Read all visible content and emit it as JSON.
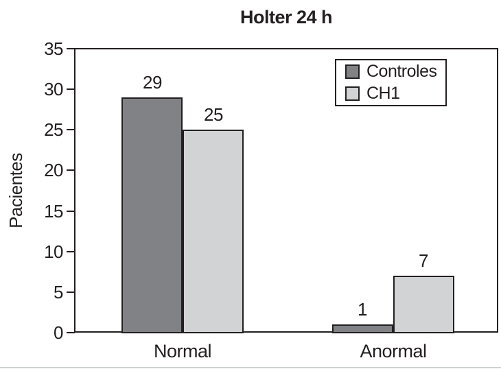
{
  "chart_data": {
    "type": "bar",
    "title": "Holter 24 h",
    "xlabel": "",
    "ylabel": "Pacientes",
    "categories": [
      "Normal",
      "Anormal"
    ],
    "series": [
      {
        "name": "Controles",
        "color": "#808285",
        "values": [
          29,
          1
        ]
      },
      {
        "name": "CH1",
        "color": "#d1d3d4",
        "values": [
          25,
          7
        ]
      }
    ],
    "ylim": [
      0,
      35
    ],
    "yticks": [
      0,
      5,
      10,
      15,
      20,
      25,
      30,
      35
    ],
    "grid": false,
    "bar_value_labels": [
      [
        "29",
        "1"
      ],
      [
        "25",
        "7"
      ]
    ],
    "legend_position": "top-right",
    "frame": true
  },
  "colors": {
    "axis_line": "#231f20",
    "controles_fill": "#808285",
    "ch1_fill": "#d1d3d4",
    "background": "#ffffff",
    "bottom_edge": "#cfd2d3"
  }
}
